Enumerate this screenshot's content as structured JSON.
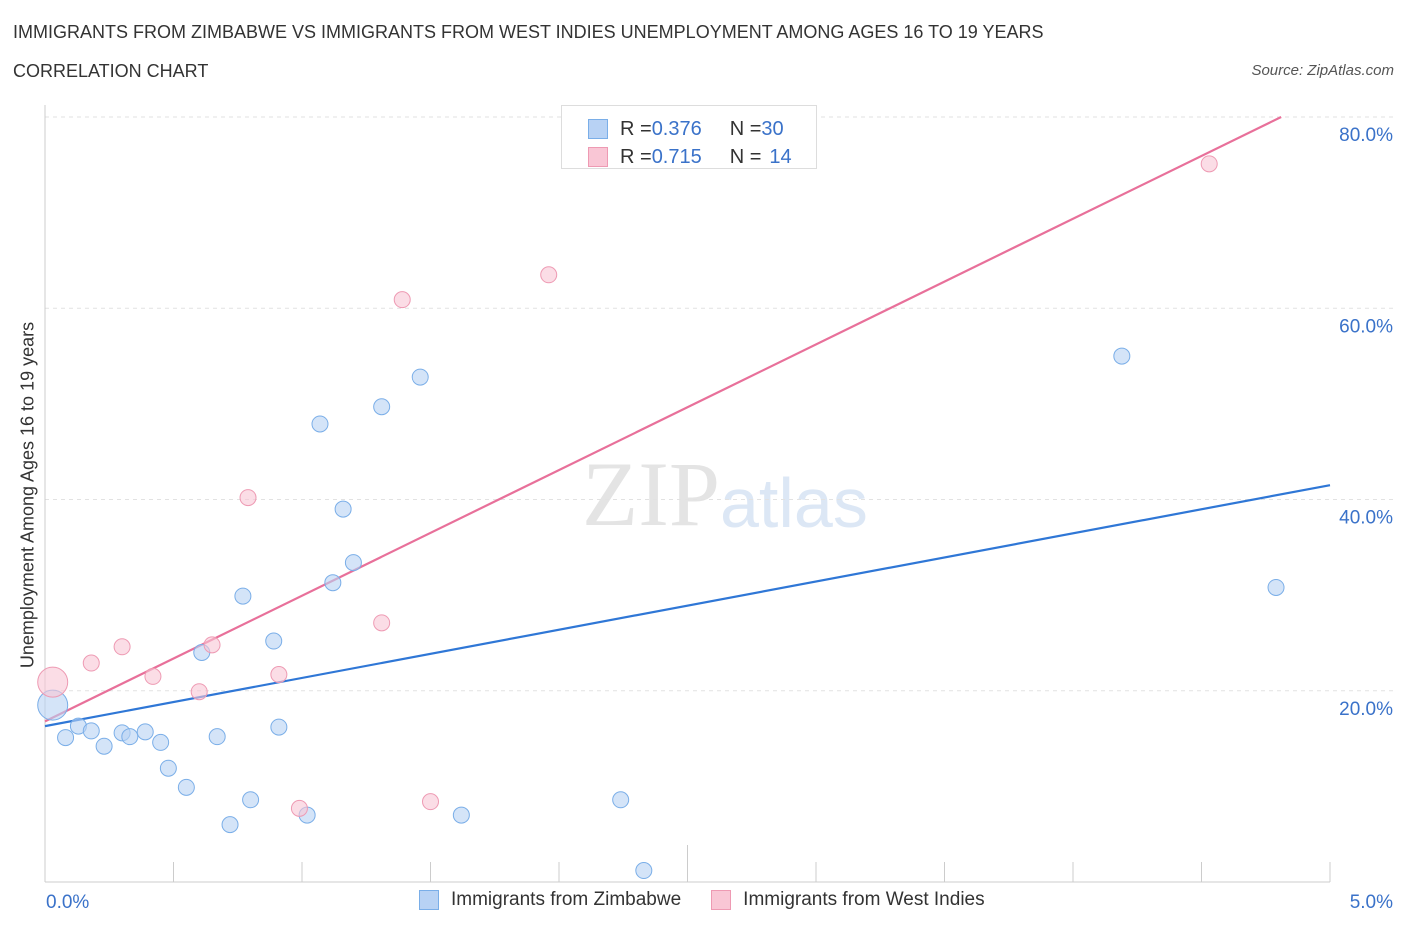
{
  "chart_data": {
    "type": "scatter",
    "title": "IMMIGRANTS FROM ZIMBABWE VS IMMIGRANTS FROM WEST INDIES UNEMPLOYMENT AMONG AGES 16 TO 19 YEARS",
    "subtitle": "CORRELATION CHART",
    "source": "Source: ZipAtlas.com",
    "ylabel": "Unemployment Among Ages 16 to 19 years",
    "xlim": [
      0,
      5
    ],
    "ylim": [
      0,
      80
    ],
    "x_tick_labels": [
      "0.0%",
      "5.0%"
    ],
    "y_ticks": [
      20,
      40,
      60,
      80
    ],
    "y_tick_labels": [
      "20.0%",
      "40.0%",
      "60.0%",
      "80.0%"
    ],
    "grid": true,
    "watermark": "ZIPatlas",
    "legend": [
      {
        "r_label": "R = ",
        "r": "0.376",
        "n_label": "N = ",
        "n": "30"
      },
      {
        "r_label": "R = ",
        "r": "0.715",
        "n_label": "N = ",
        "n": "14"
      }
    ],
    "series": [
      {
        "name": "Immigrants from Zimbabwe",
        "color": "#7aaee8",
        "fill": "#b8d2f4",
        "line_color": "#2f77d6",
        "trend": [
          [
            0,
            16.3
          ],
          [
            5,
            41.5
          ]
        ],
        "points": [
          [
            0.03,
            18.5
          ],
          [
            0.08,
            15.1
          ],
          [
            0.13,
            16.3
          ],
          [
            0.18,
            15.8
          ],
          [
            0.23,
            14.2
          ],
          [
            0.3,
            15.6
          ],
          [
            0.33,
            15.2
          ],
          [
            0.39,
            15.7
          ],
          [
            0.45,
            14.6
          ],
          [
            0.48,
            11.9
          ],
          [
            0.55,
            9.9
          ],
          [
            0.61,
            24.0
          ],
          [
            0.67,
            15.2
          ],
          [
            0.72,
            6.0
          ],
          [
            0.77,
            29.9
          ],
          [
            0.8,
            8.6
          ],
          [
            0.89,
            25.2
          ],
          [
            0.91,
            16.2
          ],
          [
            1.02,
            7.0
          ],
          [
            1.07,
            47.9
          ],
          [
            1.12,
            31.3
          ],
          [
            1.16,
            39.0
          ],
          [
            1.2,
            33.4
          ],
          [
            1.31,
            49.7
          ],
          [
            1.46,
            52.8
          ],
          [
            1.62,
            7.0
          ],
          [
            2.24,
            8.6
          ],
          [
            2.33,
            1.2
          ],
          [
            4.19,
            55.0
          ],
          [
            4.79,
            30.8
          ]
        ]
      },
      {
        "name": "Immigrants from West Indies",
        "color": "#ee9ab3",
        "fill": "#f9c6d5",
        "line_color": "#e8709a",
        "trend": [
          [
            0,
            16.8
          ],
          [
            4.81,
            80
          ]
        ],
        "points": [
          [
            0.03,
            20.9
          ],
          [
            0.18,
            22.9
          ],
          [
            0.3,
            24.6
          ],
          [
            0.42,
            21.5
          ],
          [
            0.6,
            19.9
          ],
          [
            0.65,
            24.8
          ],
          [
            0.79,
            40.2
          ],
          [
            0.91,
            21.7
          ],
          [
            0.99,
            7.7
          ],
          [
            1.31,
            27.1
          ],
          [
            1.39,
            60.9
          ],
          [
            1.5,
            8.4
          ],
          [
            1.96,
            63.5
          ],
          [
            4.53,
            75.1
          ]
        ]
      }
    ]
  }
}
